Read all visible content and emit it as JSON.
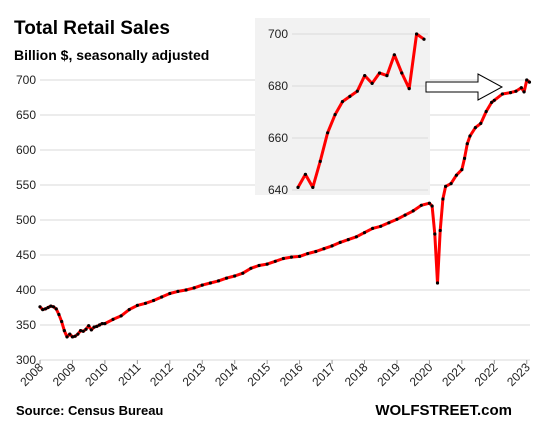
{
  "header": {
    "title": "Total Retail Sales",
    "subtitle": "Billion $, seasonally adjusted"
  },
  "footer": {
    "source": "Source: Census Bureau",
    "brand": "WOLFSTREET.com"
  },
  "colors": {
    "line": "#ff0000",
    "markers": "#000000",
    "inset_background": "#f2f2f2",
    "grid": "#d9d9d9"
  },
  "chart_data": [
    {
      "type": "line",
      "title": "Total Retail Sales",
      "subtitle": "Billion $, seasonally adjusted",
      "xlabel": "",
      "ylabel": "",
      "grid": true,
      "legend": "none",
      "xlim": [
        2008.0,
        2023.1
      ],
      "ylim": [
        300,
        700
      ],
      "yticks": [
        300,
        350,
        400,
        450,
        500,
        550,
        600,
        650,
        700
      ],
      "xticks": [
        "2008",
        "2009",
        "2010",
        "2011",
        "2012",
        "2013",
        "2014",
        "2015",
        "2016",
        "2017",
        "2018",
        "2019",
        "2020",
        "2021",
        "2022",
        "2023"
      ],
      "series": [
        {
          "x": [
            2008.0,
            2008.083,
            2008.167,
            2008.25,
            2008.333,
            2008.417,
            2008.5,
            2008.583,
            2008.667,
            2008.75,
            2008.833,
            2008.917,
            2009.0,
            2009.083,
            2009.167,
            2009.25,
            2009.333,
            2009.417,
            2009.5,
            2009.583,
            2009.667,
            2009.75,
            2009.833,
            2009.917,
            2010.0,
            2010.25,
            2010.5,
            2010.75,
            2011.0,
            2011.25,
            2011.5,
            2011.75,
            2012.0,
            2012.25,
            2012.5,
            2012.75,
            2013.0,
            2013.25,
            2013.5,
            2013.75,
            2014.0,
            2014.25,
            2014.5,
            2014.75,
            2015.0,
            2015.25,
            2015.5,
            2015.75,
            2016.0,
            2016.25,
            2016.5,
            2016.75,
            2017.0,
            2017.25,
            2017.5,
            2017.75,
            2018.0,
            2018.25,
            2018.5,
            2018.75,
            2019.0,
            2019.25,
            2019.5,
            2019.75,
            2020.0,
            2020.083,
            2020.167,
            2020.25,
            2020.333,
            2020.417,
            2020.5,
            2020.667,
            2020.833,
            2021.0,
            2021.083,
            2021.167,
            2021.25,
            2021.417,
            2021.583,
            2021.75,
            2021.917,
            2022.0,
            2022.25,
            2022.5,
            2022.667,
            2022.833,
            2022.917,
            2023.0,
            2023.083
          ],
          "values": [
            376,
            372,
            373,
            375,
            377,
            376,
            373,
            365,
            355,
            342,
            333,
            337,
            333,
            334,
            337,
            342,
            341,
            344,
            349,
            343,
            347,
            348,
            350,
            352,
            352,
            358,
            363,
            372,
            378,
            381,
            385,
            390,
            395,
            398,
            400,
            403,
            407,
            410,
            413,
            417,
            420,
            424,
            431,
            435,
            437,
            441,
            445,
            447,
            448,
            452,
            455,
            459,
            463,
            468,
            472,
            476,
            482,
            488,
            491,
            496,
            501,
            507,
            513,
            521,
            524,
            520,
            480,
            410,
            485,
            530,
            548,
            552,
            564,
            572,
            588,
            609,
            620,
            632,
            638,
            655,
            668,
            671,
            680,
            682,
            684,
            689,
            683,
            700,
            697
          ]
        }
      ]
    },
    {
      "type": "line",
      "title": "",
      "xlabel": "",
      "ylabel": "",
      "grid": false,
      "legend": "none",
      "ylim": [
        640,
        700
      ],
      "yticks": [
        640,
        660,
        680,
        700
      ],
      "series": [
        {
          "values": [
            641,
            646,
            641,
            651,
            662,
            669,
            674,
            676,
            678,
            684,
            681,
            685,
            684,
            692,
            685,
            679,
            700,
            698
          ]
        }
      ]
    }
  ]
}
